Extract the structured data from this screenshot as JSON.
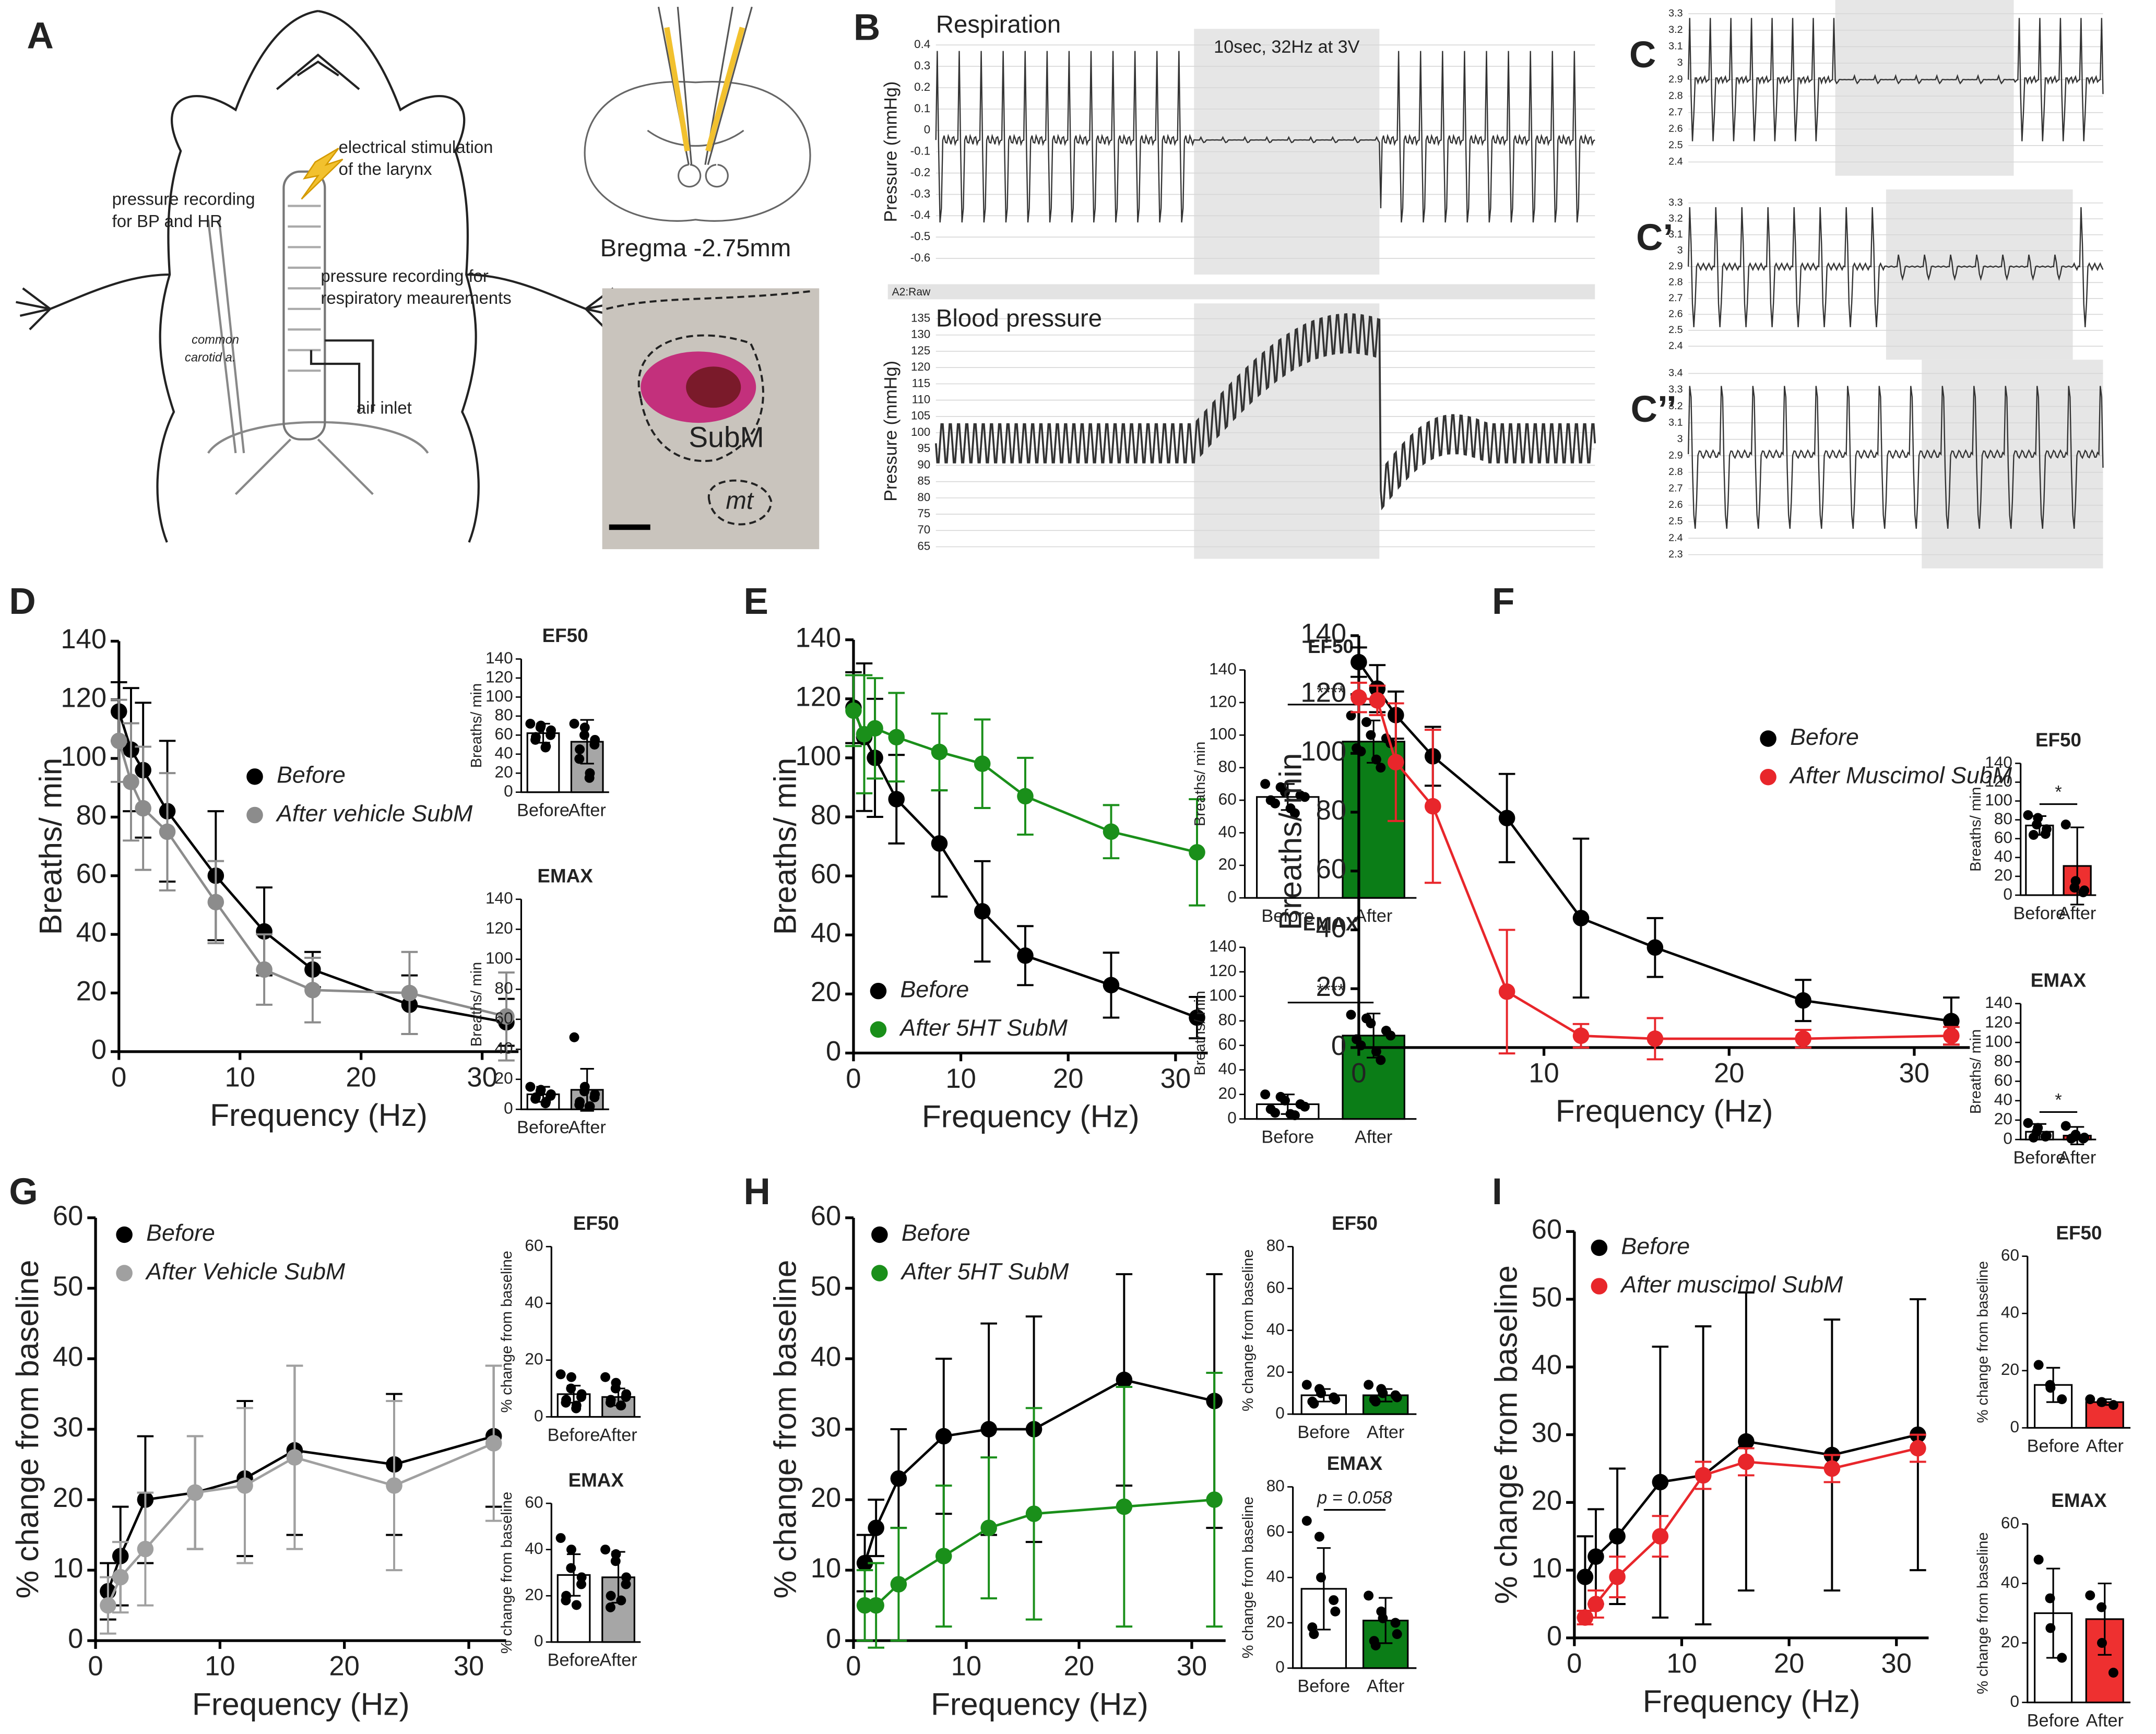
{
  "figure": {
    "panel_labels": [
      "A",
      "B",
      "C",
      "C’",
      "C’’",
      "D",
      "E",
      "F",
      "G",
      "H",
      "I"
    ],
    "diagram": {
      "stimulation": [
        "electrical stimulation",
        "of the larynx"
      ],
      "bp_recording": [
        "pressure recording",
        "for BP and HR"
      ],
      "resp_recording": [
        "pressure recording for",
        "respiratory meaurements"
      ],
      "carotid": [
        "common",
        "carotid a."
      ],
      "air_inlet": "air inlet",
      "bregma": "Bregma -2.75mm",
      "subm": "SubM",
      "mt": "mt"
    },
    "raw_channel": "A2:Raw"
  },
  "chart_data": [
    {
      "type": "trace",
      "title": "Respiration",
      "ylabel": "Pressure (mmHg)",
      "annotation": "10sec, 32Hz at 3V",
      "ylim": [
        -0.65,
        0.45
      ],
      "yticks": [
        0.4,
        0.3,
        0.2,
        0.1,
        0,
        -0.1,
        -0.2,
        -0.3,
        -0.4,
        -0.5,
        -0.6
      ]
    },
    {
      "type": "trace",
      "title": "Blood pressure",
      "ylabel": "Pressure (mmHg)",
      "ylim": [
        63,
        138
      ],
      "yticks": [
        135,
        130,
        125,
        120,
        115,
        110,
        105,
        100,
        95,
        90,
        85,
        80,
        75,
        70,
        65
      ]
    },
    {
      "type": "trace",
      "ylim": [
        2.35,
        3.35
      ],
      "yticks": [
        3.3,
        3.2,
        3.1,
        3,
        2.9,
        2.8,
        2.7,
        2.6,
        2.5,
        2.4
      ]
    },
    {
      "type": "trace",
      "ylim": [
        2.35,
        3.35
      ],
      "yticks": [
        3.3,
        3.2,
        3.1,
        3,
        2.9,
        2.8,
        2.7,
        2.6,
        2.5,
        2.4
      ]
    },
    {
      "type": "trace",
      "ylim": [
        2.25,
        3.45
      ],
      "yticks": [
        3.4,
        3.3,
        3.2,
        3.1,
        3,
        2.9,
        2.8,
        2.7,
        2.6,
        2.5,
        2.4,
        2.3
      ]
    },
    {
      "type": "line",
      "xlabel": "Frequency (Hz)",
      "ylabel": "Breaths/ min",
      "legend": "center",
      "x": [
        0,
        1,
        2,
        4,
        8,
        12,
        16,
        24,
        32
      ],
      "xlim": [
        0,
        33
      ],
      "xticks": [
        0,
        10,
        20,
        30
      ],
      "ylim": [
        0,
        140
      ],
      "yticks": [
        0,
        20,
        40,
        60,
        80,
        100,
        120,
        140
      ],
      "series": [
        {
          "name": "Before",
          "color": "#000000",
          "values": [
            116,
            103,
            96,
            82,
            60,
            41,
            28,
            16,
            10
          ],
          "errors": [
            10,
            21,
            23,
            24,
            22,
            15,
            6,
            10,
            8
          ]
        },
        {
          "name": "After vehicle SubM",
          "color": "#8c8c8c",
          "values": [
            106,
            92,
            83,
            75,
            51,
            28,
            21,
            20,
            12
          ],
          "errors": [
            14,
            20,
            21,
            20,
            14,
            12,
            11,
            14,
            15
          ]
        }
      ]
    },
    {
      "type": "bar",
      "title": "EF50",
      "ylabel": "Breaths/ min",
      "categories": [
        "Before",
        "After"
      ],
      "ylim": [
        0,
        140
      ],
      "yticks": [
        0,
        20,
        40,
        60,
        80,
        100,
        120,
        140
      ],
      "colors": [
        "#ffffff",
        "#a6a6a6"
      ],
      "values": [
        62,
        53
      ],
      "errors": [
        10,
        23
      ],
      "points": [
        [
          72,
          70,
          68,
          65,
          60,
          58,
          55,
          48,
          47
        ],
        [
          72,
          68,
          60,
          55,
          50,
          45,
          35,
          20,
          15
        ]
      ]
    },
    {
      "type": "bar",
      "title": "EMAX",
      "ylabel": "Breaths/ min",
      "categories": [
        "Before",
        "After"
      ],
      "ylim": [
        0,
        140
      ],
      "yticks": [
        0,
        20,
        40,
        60,
        80,
        100,
        120,
        140
      ],
      "colors": [
        "#ffffff",
        "#a6a6a6"
      ],
      "values": [
        10,
        13
      ],
      "errors": [
        5,
        14
      ],
      "points": [
        [
          15,
          13,
          12,
          10,
          9,
          8,
          7,
          5,
          4
        ],
        [
          48,
          15,
          12,
          10,
          8,
          5,
          3,
          2,
          2
        ]
      ]
    },
    {
      "type": "line",
      "xlabel": "Frequency (Hz)",
      "ylabel": "Breaths/ min",
      "legend": "lower left",
      "x": [
        0,
        1,
        2,
        4,
        8,
        12,
        16,
        24,
        32
      ],
      "xlim": [
        0,
        33
      ],
      "xticks": [
        0,
        10,
        20,
        30
      ],
      "ylim": [
        0,
        140
      ],
      "yticks": [
        0,
        20,
        40,
        60,
        80,
        100,
        120,
        140
      ],
      "series": [
        {
          "name": "Before",
          "color": "#000000",
          "values": [
            117,
            107,
            100,
            86,
            71,
            48,
            33,
            23,
            12
          ],
          "errors": [
            12,
            25,
            20,
            15,
            18,
            17,
            10,
            11,
            7
          ]
        },
        {
          "name": "After 5HT SubM",
          "color": "#1a8f1a",
          "values": [
            116,
            108,
            110,
            107,
            102,
            98,
            87,
            75,
            68
          ],
          "errors": [
            12,
            20,
            17,
            15,
            13,
            15,
            13,
            9,
            18
          ]
        }
      ]
    },
    {
      "type": "bar",
      "title": "EF50",
      "ylabel": "Breaths/ min",
      "categories": [
        "Before",
        "After"
      ],
      "annotation": "****",
      "ylim": [
        0,
        140
      ],
      "yticks": [
        0,
        20,
        40,
        60,
        80,
        100,
        120,
        140
      ],
      "colors": [
        "#ffffff",
        "#0b7d17"
      ],
      "values": [
        62,
        96
      ],
      "errors": [
        8,
        13
      ],
      "points": [
        [
          70,
          68,
          65,
          63,
          62,
          60,
          58,
          55,
          52
        ],
        [
          112,
          108,
          100,
          98,
          95,
          92,
          90,
          85,
          80
        ]
      ]
    },
    {
      "type": "bar",
      "title": "EMAX",
      "ylabel": "Breaths/ min",
      "categories": [
        "Before",
        "After"
      ],
      "annotation": "****",
      "ylim": [
        0,
        140
      ],
      "yticks": [
        0,
        20,
        40,
        60,
        80,
        100,
        120,
        140
      ],
      "colors": [
        "#ffffff",
        "#0b7d17"
      ],
      "values": [
        12,
        68
      ],
      "errors": [
        8,
        18
      ],
      "points": [
        [
          20,
          18,
          15,
          12,
          10,
          8,
          5,
          4,
          3
        ],
        [
          85,
          82,
          78,
          72,
          68,
          65,
          60,
          55,
          48
        ]
      ]
    },
    {
      "type": "line",
      "xlabel": "Frequency (Hz)",
      "ylabel": "Breaths/ min",
      "legend": "upper right",
      "x": [
        0,
        1,
        2,
        4,
        8,
        12,
        16,
        24,
        32
      ],
      "xlim": [
        0,
        33
      ],
      "xticks": [
        0,
        10,
        20,
        30
      ],
      "ylim": [
        0,
        140
      ],
      "yticks": [
        0,
        20,
        40,
        60,
        80,
        100,
        120,
        140
      ],
      "series": [
        {
          "name": "Before",
          "color": "#000000",
          "values": [
            131,
            122,
            113,
            99,
            78,
            44,
            34,
            16,
            9
          ],
          "errors": [
            5,
            8,
            8,
            10,
            15,
            27,
            10,
            7,
            8
          ]
        },
        {
          "name": "After Muscimol SubM",
          "color": "#e8262b",
          "values": [
            119,
            118,
            97,
            82,
            19,
            4,
            3,
            3,
            4
          ],
          "errors": [
            5,
            5,
            20,
            26,
            21,
            4,
            7,
            3,
            3
          ]
        }
      ]
    },
    {
      "type": "bar",
      "title": "EF50",
      "ylabel": "Breaths/ min",
      "categories": [
        "Before",
        "After"
      ],
      "annotation": "*",
      "ylim": [
        0,
        140
      ],
      "yticks": [
        0,
        20,
        40,
        60,
        80,
        100,
        120,
        140
      ],
      "colors": [
        "#ffffff",
        "#ee3030"
      ],
      "values": [
        74,
        31
      ],
      "errors": [
        10,
        41
      ],
      "points": [
        [
          85,
          82,
          75,
          70,
          65,
          64
        ],
        [
          75,
          15,
          8,
          5,
          3
        ]
      ]
    },
    {
      "type": "bar",
      "title": "EMAX",
      "ylabel": "Breaths/ min",
      "categories": [
        "Before",
        "After"
      ],
      "annotation": "*",
      "ylim": [
        0,
        140
      ],
      "yticks": [
        0,
        20,
        40,
        60,
        80,
        100,
        120,
        140
      ],
      "colors": [
        "#ffffff",
        "#ee3030"
      ],
      "values": [
        8,
        4
      ],
      "errors": [
        8,
        9
      ],
      "points": [
        [
          17,
          12,
          8,
          4,
          3,
          2
        ],
        [
          14,
          5,
          3,
          2,
          1,
          1
        ]
      ]
    },
    {
      "type": "line",
      "xlabel": "Frequency (Hz)",
      "ylabel": "% change from baseline",
      "legend": "upper left",
      "x": [
        1,
        2,
        4,
        8,
        12,
        16,
        24,
        32
      ],
      "xlim": [
        0,
        33
      ],
      "xticks": [
        0,
        10,
        20,
        30
      ],
      "ylim": [
        0,
        60
      ],
      "yticks": [
        0,
        10,
        20,
        30,
        40,
        50,
        60
      ],
      "series": [
        {
          "name": "Before",
          "color": "#000000",
          "values": [
            7,
            12,
            20,
            21,
            23,
            27,
            25,
            29
          ],
          "errors": [
            4,
            7,
            9,
            8,
            11,
            12,
            10,
            10
          ]
        },
        {
          "name": "After Vehicle SubM",
          "color": "#a0a0a0",
          "values": [
            5,
            9,
            13,
            21,
            22,
            26,
            22,
            28
          ],
          "errors": [
            4,
            5,
            8,
            8,
            11,
            13,
            12,
            11
          ]
        }
      ]
    },
    {
      "type": "bar",
      "title": "EF50",
      "ylabel": "% change from baseline",
      "categories": [
        "Before",
        "After"
      ],
      "ylim": [
        0,
        60
      ],
      "yticks": [
        0,
        20,
        40,
        60
      ],
      "colors": [
        "#ffffff",
        "#a6a6a6"
      ],
      "values": [
        8,
        7
      ],
      "errors": [
        3,
        3
      ],
      "points": [
        [
          15,
          14,
          10,
          8,
          7,
          6,
          5,
          4,
          3
        ],
        [
          14,
          12,
          10,
          8,
          7,
          6,
          5,
          4,
          4
        ]
      ]
    },
    {
      "type": "bar",
      "title": "EMAX",
      "ylabel": "% change from baseline",
      "categories": [
        "Before",
        "After"
      ],
      "ylim": [
        0,
        60
      ],
      "yticks": [
        0,
        20,
        40,
        60
      ],
      "colors": [
        "#ffffff",
        "#a6a6a6"
      ],
      "values": [
        29,
        28
      ],
      "errors": [
        9,
        11
      ],
      "points": [
        [
          45,
          40,
          32,
          28,
          25,
          20,
          18,
          16
        ],
        [
          40,
          38,
          35,
          28,
          25,
          20,
          15,
          18
        ]
      ]
    },
    {
      "type": "line",
      "xlabel": "Frequency (Hz)",
      "ylabel": "% change from baseline",
      "legend": "upper left",
      "x": [
        1,
        2,
        4,
        8,
        12,
        16,
        24,
        32
      ],
      "xlim": [
        0,
        33
      ],
      "xticks": [
        0,
        10,
        20,
        30
      ],
      "ylim": [
        0,
        60
      ],
      "yticks": [
        0,
        10,
        20,
        30,
        40,
        50,
        60
      ],
      "series": [
        {
          "name": "Before",
          "color": "#000000",
          "values": [
            11,
            16,
            23,
            29,
            30,
            30,
            37,
            34
          ],
          "errors": [
            4,
            4,
            7,
            11,
            15,
            16,
            15,
            18
          ]
        },
        {
          "name": "After 5HT SubM",
          "color": "#1a8f1a",
          "values": [
            5,
            5,
            8,
            12,
            16,
            18,
            19,
            20
          ],
          "errors": [
            5,
            6,
            8,
            10,
            10,
            15,
            17,
            18
          ]
        }
      ]
    },
    {
      "type": "bar",
      "title": "EF50",
      "ylabel": "% change from baseline",
      "categories": [
        "Before",
        "After"
      ],
      "ylim": [
        0,
        80
      ],
      "yticks": [
        0,
        20,
        40,
        60,
        80
      ],
      "colors": [
        "#ffffff",
        "#0b7d17"
      ],
      "values": [
        9,
        9
      ],
      "errors": [
        3,
        3
      ],
      "points": [
        [
          14,
          12,
          10,
          8,
          7,
          6,
          5
        ],
        [
          14,
          12,
          10,
          9,
          8,
          7,
          6
        ]
      ]
    },
    {
      "type": "bar",
      "title": "EMAX",
      "ylabel": "% change from baseline",
      "categories": [
        "Before",
        "After"
      ],
      "annotation": "p = 0.058",
      "ylim": [
        0,
        80
      ],
      "yticks": [
        0,
        20,
        40,
        60,
        80
      ],
      "colors": [
        "#ffffff",
        "#0b7d17"
      ],
      "values": [
        35,
        21
      ],
      "errors": [
        18,
        10
      ],
      "points": [
        [
          65,
          58,
          40,
          30,
          25,
          18,
          15
        ],
        [
          32,
          25,
          22,
          20,
          15,
          12,
          10
        ]
      ]
    },
    {
      "type": "line",
      "xlabel": "Frequency (Hz)",
      "ylabel": "% change from baseline",
      "legend": "upper left",
      "x": [
        1,
        2,
        4,
        8,
        12,
        16,
        24,
        32
      ],
      "xlim": [
        0,
        33
      ],
      "xticks": [
        0,
        10,
        20,
        30
      ],
      "ylim": [
        0,
        60
      ],
      "yticks": [
        0,
        10,
        20,
        30,
        40,
        50,
        60
      ],
      "series": [
        {
          "name": "Before",
          "color": "#000000",
          "values": [
            9,
            12,
            15,
            23,
            24,
            29,
            27,
            30
          ],
          "errors": [
            6,
            7,
            10,
            20,
            22,
            22,
            20,
            20
          ]
        },
        {
          "name": "After muscimol SubM",
          "color": "#e8262b",
          "values": [
            3,
            5,
            9,
            15,
            24,
            26,
            25,
            28
          ],
          "errors": [
            1,
            2,
            3,
            3,
            2,
            2,
            2,
            2
          ]
        }
      ]
    },
    {
      "type": "bar",
      "title": "EF50",
      "ylabel": "% change from baseline",
      "categories": [
        "Before",
        "After"
      ],
      "ylim": [
        0,
        60
      ],
      "yticks": [
        0,
        20,
        40,
        60
      ],
      "colors": [
        "#ffffff",
        "#ee3030"
      ],
      "values": [
        15,
        9
      ],
      "errors": [
        6,
        1
      ],
      "points": [
        [
          22,
          15,
          14,
          10
        ],
        [
          10,
          9,
          9,
          8
        ]
      ]
    },
    {
      "type": "bar",
      "title": "EMAX",
      "ylabel": "% change from baseline",
      "categories": [
        "Before",
        "After"
      ],
      "ylim": [
        0,
        60
      ],
      "yticks": [
        0,
        20,
        40,
        60
      ],
      "colors": [
        "#ffffff",
        "#ee3030"
      ],
      "values": [
        30,
        28
      ],
      "errors": [
        15,
        12
      ],
      "points": [
        [
          48,
          35,
          25,
          15
        ],
        [
          36,
          32,
          20,
          10
        ]
      ]
    }
  ]
}
